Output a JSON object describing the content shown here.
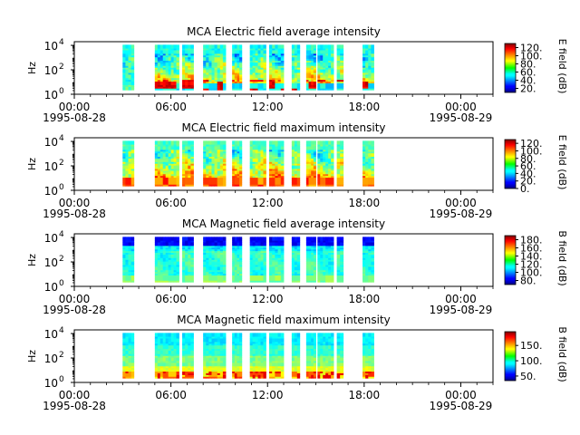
{
  "chart_data": [
    {
      "type": "heatmap",
      "title": "MCA  Electric field average intensity",
      "ylabel": "Hz",
      "y_scale": "log",
      "y_ticks": [
        {
          "base": "10",
          "exp": "0"
        },
        {
          "base": "10",
          "exp": "2"
        },
        {
          "base": "10",
          "exp": "4"
        }
      ],
      "x_range": [
        "1995-08-28 00:00",
        "1995-08-29 02:00"
      ],
      "x_ticks": [
        {
          "t": "00:00",
          "d": "1995-08-28"
        },
        {
          "t": "06:00",
          "d": ""
        },
        {
          "t": "12:00",
          "d": ""
        },
        {
          "t": "18:00",
          "d": ""
        },
        {
          "t": "00:00",
          "d": "1995-08-29"
        }
      ],
      "colorbar": {
        "label": "E field (dB)",
        "range": [
          10,
          130
        ],
        "ticks": [
          "120.",
          "100.",
          "80.",
          "60.",
          "40.",
          "20."
        ],
        "tick_values": [
          120,
          100,
          80,
          60,
          40,
          20
        ]
      },
      "data_intervals_hours": [
        [
          3.0,
          3.7
        ],
        [
          5.0,
          6.5
        ],
        [
          6.7,
          7.4
        ],
        [
          8.0,
          9.4
        ],
        [
          9.8,
          10.4
        ],
        [
          10.9,
          11.9
        ],
        [
          12.1,
          13.0
        ],
        [
          13.5,
          14.0
        ],
        [
          14.4,
          15.0
        ],
        [
          15.1,
          16.1
        ],
        [
          16.3,
          16.7
        ],
        [
          17.9,
          18.6
        ]
      ],
      "value_profile": "average-electric"
    },
    {
      "type": "heatmap",
      "title": "MCA  Electric field maximum intensity",
      "ylabel": "Hz",
      "y_scale": "log",
      "y_ticks": [
        {
          "base": "10",
          "exp": "0"
        },
        {
          "base": "10",
          "exp": "2"
        },
        {
          "base": "10",
          "exp": "4"
        }
      ],
      "x_range": [
        "1995-08-28 00:00",
        "1995-08-29 02:00"
      ],
      "x_ticks": [
        {
          "t": "00:00",
          "d": "1995-08-28"
        },
        {
          "t": "06:00",
          "d": ""
        },
        {
          "t": "12:00",
          "d": ""
        },
        {
          "t": "18:00",
          "d": ""
        },
        {
          "t": "00:00",
          "d": "1995-08-29"
        }
      ],
      "colorbar": {
        "label": "E field (dB)",
        "range": [
          0,
          130
        ],
        "ticks": [
          "120.",
          "100.",
          "80.",
          "60.",
          "40.",
          "20.",
          "0."
        ],
        "tick_values": [
          120,
          100,
          80,
          60,
          40,
          20,
          0
        ]
      },
      "data_intervals_hours": [
        [
          3.0,
          3.7
        ],
        [
          5.0,
          6.5
        ],
        [
          6.7,
          7.4
        ],
        [
          8.0,
          9.4
        ],
        [
          9.8,
          10.4
        ],
        [
          10.9,
          11.9
        ],
        [
          12.1,
          13.0
        ],
        [
          13.5,
          14.0
        ],
        [
          14.4,
          15.0
        ],
        [
          15.1,
          16.1
        ],
        [
          16.3,
          16.7
        ],
        [
          17.9,
          18.6
        ]
      ],
      "value_profile": "maximum-electric"
    },
    {
      "type": "heatmap",
      "title": "MCA  Magnetic field average intensity",
      "ylabel": "Hz",
      "y_scale": "log",
      "y_ticks": [
        {
          "base": "10",
          "exp": "0"
        },
        {
          "base": "10",
          "exp": "2"
        },
        {
          "base": "10",
          "exp": "4"
        }
      ],
      "x_range": [
        "1995-08-28 00:00",
        "1995-08-29 02:00"
      ],
      "x_ticks": [
        {
          "t": "00:00",
          "d": "1995-08-28"
        },
        {
          "t": "06:00",
          "d": ""
        },
        {
          "t": "12:00",
          "d": ""
        },
        {
          "t": "18:00",
          "d": ""
        },
        {
          "t": "00:00",
          "d": "1995-08-29"
        }
      ],
      "colorbar": {
        "label": "B field (dB)",
        "range": [
          70,
          190
        ],
        "ticks": [
          "180.",
          "160.",
          "140.",
          "120.",
          "100.",
          "80."
        ],
        "tick_values": [
          180,
          160,
          140,
          120,
          100,
          80
        ]
      },
      "data_intervals_hours": [
        [
          3.0,
          3.7
        ],
        [
          5.0,
          6.5
        ],
        [
          6.7,
          7.4
        ],
        [
          8.0,
          9.4
        ],
        [
          9.8,
          10.4
        ],
        [
          10.9,
          11.9
        ],
        [
          12.1,
          13.0
        ],
        [
          13.5,
          14.0
        ],
        [
          14.4,
          15.0
        ],
        [
          15.1,
          16.1
        ],
        [
          16.3,
          16.7
        ],
        [
          17.9,
          18.6
        ]
      ],
      "value_profile": "average-magnetic"
    },
    {
      "type": "heatmap",
      "title": "MCA  Magnetic field maximum intensity",
      "ylabel": "Hz",
      "y_scale": "log",
      "y_ticks": [
        {
          "base": "10",
          "exp": "0"
        },
        {
          "base": "10",
          "exp": "2"
        },
        {
          "base": "10",
          "exp": "4"
        }
      ],
      "x_range": [
        "1995-08-28 00:00",
        "1995-08-29 02:00"
      ],
      "x_ticks": [
        {
          "t": "00:00",
          "d": "1995-08-28"
        },
        {
          "t": "06:00",
          "d": ""
        },
        {
          "t": "12:00",
          "d": ""
        },
        {
          "t": "18:00",
          "d": ""
        },
        {
          "t": "00:00",
          "d": "1995-08-29"
        }
      ],
      "colorbar": {
        "label": "B field (dB)",
        "range": [
          35,
          195
        ],
        "ticks": [
          "150.",
          "100.",
          "50."
        ],
        "tick_values": [
          150,
          100,
          50
        ]
      },
      "data_intervals_hours": [
        [
          3.0,
          3.7
        ],
        [
          5.0,
          6.5
        ],
        [
          6.7,
          7.4
        ],
        [
          8.0,
          9.4
        ],
        [
          9.8,
          10.4
        ],
        [
          10.9,
          11.9
        ],
        [
          12.1,
          13.0
        ],
        [
          13.5,
          14.0
        ],
        [
          14.4,
          15.0
        ],
        [
          15.1,
          16.1
        ],
        [
          16.3,
          16.7
        ],
        [
          17.9,
          18.6
        ]
      ],
      "value_profile": "maximum-magnetic"
    }
  ]
}
